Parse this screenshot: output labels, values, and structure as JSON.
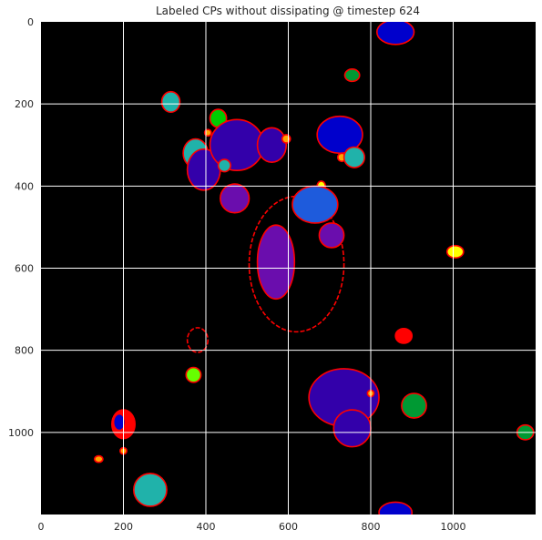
{
  "chart_data": {
    "type": "heatmap",
    "title": "Labeled CPs without dissipating @ timestep 624",
    "xlabel": "",
    "ylabel": "",
    "xlim": [
      0,
      1200
    ],
    "ylim": [
      1200,
      0
    ],
    "y_axis_inverted": true,
    "grid": true,
    "grid_color": "#ffffff",
    "background_color": "#000000",
    "boundary_color": "#ff0000",
    "x_ticks": [
      0,
      200,
      400,
      600,
      800,
      1000
    ],
    "y_ticks": [
      0,
      200,
      400,
      600,
      800,
      1000
    ],
    "regions": [
      {
        "x": 860,
        "y": 25,
        "rx": 45,
        "ry": 30,
        "color": "#0000cc"
      },
      {
        "x": 755,
        "y": 130,
        "rx": 18,
        "ry": 15,
        "color": "#009933"
      },
      {
        "x": 315,
        "y": 195,
        "rx": 22,
        "ry": 25,
        "color": "#20b2aa"
      },
      {
        "x": 430,
        "y": 235,
        "rx": 20,
        "ry": 22,
        "color": "#00cc00"
      },
      {
        "x": 405,
        "y": 270,
        "rx": 8,
        "ry": 8,
        "color": "#ffa500"
      },
      {
        "x": 375,
        "y": 320,
        "rx": 30,
        "ry": 35,
        "color": "#20b2aa"
      },
      {
        "x": 395,
        "y": 360,
        "rx": 40,
        "ry": 50,
        "color": "#3300aa"
      },
      {
        "x": 475,
        "y": 300,
        "rx": 65,
        "ry": 62,
        "color": "#3300aa"
      },
      {
        "x": 560,
        "y": 300,
        "rx": 35,
        "ry": 42,
        "color": "#3300aa"
      },
      {
        "x": 595,
        "y": 285,
        "rx": 10,
        "ry": 10,
        "color": "#ffa500"
      },
      {
        "x": 445,
        "y": 350,
        "rx": 15,
        "ry": 15,
        "color": "#20b2aa"
      },
      {
        "x": 725,
        "y": 275,
        "rx": 55,
        "ry": 45,
        "color": "#0000cc"
      },
      {
        "x": 730,
        "y": 330,
        "rx": 10,
        "ry": 10,
        "color": "#ffa500"
      },
      {
        "x": 760,
        "y": 330,
        "rx": 25,
        "ry": 25,
        "color": "#20b2aa"
      },
      {
        "x": 470,
        "y": 430,
        "rx": 35,
        "ry": 35,
        "color": "#6a0dad"
      },
      {
        "x": 680,
        "y": 400,
        "rx": 10,
        "ry": 12,
        "color": "#ffff00"
      },
      {
        "x": 665,
        "y": 445,
        "rx": 55,
        "ry": 45,
        "color": "#1e5bdc"
      },
      {
        "x": 705,
        "y": 520,
        "rx": 30,
        "ry": 30,
        "color": "#6a0dad"
      },
      {
        "x": 570,
        "y": 585,
        "rx": 45,
        "ry": 90,
        "color": "#6a0dad"
      },
      {
        "x": 1005,
        "y": 560,
        "rx": 20,
        "ry": 15,
        "color": "#ffff00"
      },
      {
        "x": 880,
        "y": 765,
        "rx": 20,
        "ry": 18,
        "color": "#ff0000"
      },
      {
        "x": 370,
        "y": 860,
        "rx": 18,
        "ry": 18,
        "color": "#66ff00"
      },
      {
        "x": 735,
        "y": 915,
        "rx": 85,
        "ry": 70,
        "color": "#3300aa"
      },
      {
        "x": 755,
        "y": 990,
        "rx": 45,
        "ry": 45,
        "color": "#3300aa"
      },
      {
        "x": 800,
        "y": 905,
        "rx": 8,
        "ry": 8,
        "color": "#ffa500"
      },
      {
        "x": 905,
        "y": 935,
        "rx": 30,
        "ry": 30,
        "color": "#009933"
      },
      {
        "x": 1175,
        "y": 1000,
        "rx": 20,
        "ry": 18,
        "color": "#009933"
      },
      {
        "x": 200,
        "y": 980,
        "rx": 28,
        "ry": 35,
        "color": "#ff0000"
      },
      {
        "x": 190,
        "y": 975,
        "rx": 14,
        "ry": 20,
        "color": "#0000cc"
      },
      {
        "x": 200,
        "y": 1045,
        "rx": 8,
        "ry": 8,
        "color": "#ffa500"
      },
      {
        "x": 140,
        "y": 1065,
        "rx": 10,
        "ry": 8,
        "color": "#ffa500"
      },
      {
        "x": 265,
        "y": 1140,
        "rx": 40,
        "ry": 40,
        "color": "#20b2aa"
      },
      {
        "x": 860,
        "y": 1195,
        "rx": 40,
        "ry": 25,
        "color": "#0000cc"
      }
    ],
    "outline_only_regions": [
      {
        "x": 620,
        "y": 590,
        "rx": 115,
        "ry": 165
      },
      {
        "x": 380,
        "y": 775,
        "rx": 25,
        "ry": 30
      }
    ]
  }
}
